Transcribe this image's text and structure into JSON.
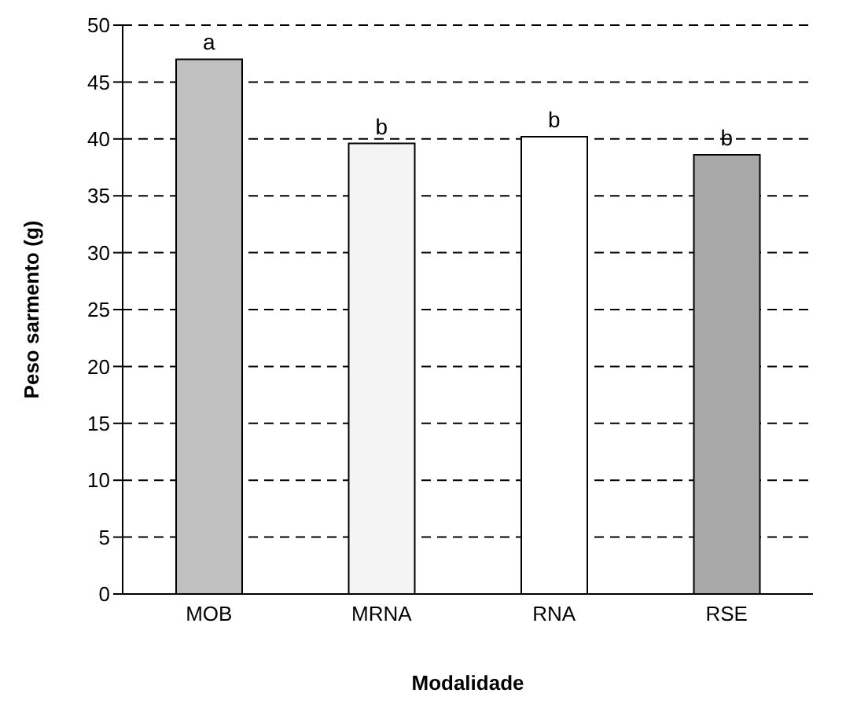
{
  "chart_data": {
    "type": "bar",
    "xlabel": "Modalidade",
    "ylabel": "Peso sarmento (g)",
    "categories": [
      "MOB",
      "MRNA",
      "RNA",
      "RSE"
    ],
    "values": [
      47,
      39.6,
      40.2,
      38.6
    ],
    "colors": [
      "#c0c0c0",
      "#f4f4f4",
      "#ffffff",
      "#a8a8a8"
    ],
    "ylim": [
      0,
      50
    ],
    "yticks": [
      0,
      5,
      10,
      15,
      20,
      25,
      30,
      35,
      40,
      45,
      50
    ],
    "grid": "y",
    "annotations": [
      {
        "text": "a",
        "x": "MOB",
        "y": 47
      },
      {
        "text": "b",
        "x": "MRNA",
        "y": 39.6
      },
      {
        "text": "b",
        "x": "RNA",
        "y": 40.2
      },
      {
        "text": "b",
        "x": "RSE",
        "y": 38.6
      }
    ]
  }
}
